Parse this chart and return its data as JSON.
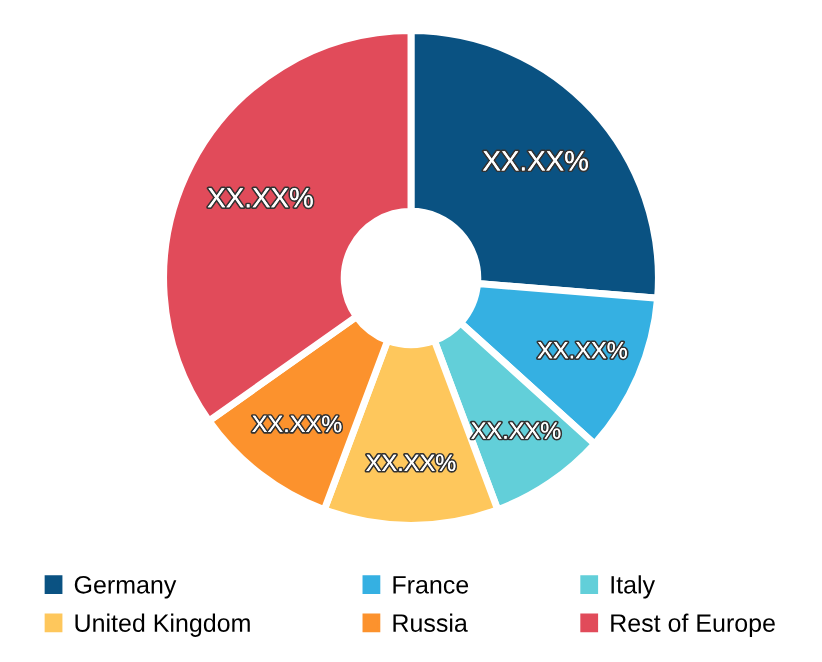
{
  "chart_data": {
    "type": "donut",
    "categories": [
      "Germany",
      "France",
      "Italy",
      "United Kingdom",
      "Russia",
      "Rest of Europe"
    ],
    "values": [
      26.3,
      10.4,
      7.6,
      11.4,
      9.5,
      34.8
    ],
    "colors": [
      "#0a5282",
      "#35b0e2",
      "#62cfd9",
      "#fec75c",
      "#fc922d",
      "#e14b5a"
    ],
    "value_labels": [
      "XX.XX%",
      "XX.XX%",
      "XX.XX%",
      "XX.XX%",
      "XX.XX%",
      "XX.XX%"
    ],
    "legend": "bottom"
  }
}
